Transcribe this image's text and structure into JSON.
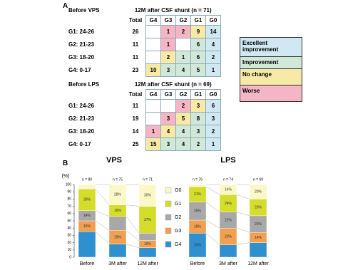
{
  "panel_a": {
    "label": "A",
    "columns": [
      "G4",
      "G3",
      "G2",
      "G1",
      "G0"
    ],
    "total_label": "Total",
    "tables": [
      {
        "before": "Before VPS",
        "after": "12M after CSF shunt (n = 71)",
        "rows": [
          {
            "group": "G1: 24-26",
            "total": 26,
            "cells": [
              null,
              1,
              2,
              9,
              14
            ]
          },
          {
            "group": "G2: 21-23",
            "total": 11,
            "cells": [
              null,
              1,
              null,
              6,
              4
            ]
          },
          {
            "group": "G3: 18-20",
            "total": 11,
            "cells": [
              null,
              2,
              1,
              6,
              2
            ]
          },
          {
            "group": "G4:  0-17",
            "total": 23,
            "cells": [
              10,
              3,
              4,
              5,
              1
            ]
          }
        ]
      },
      {
        "before": "Before LPS",
        "after": "12M after CSF shunt (n = 69)",
        "rows": [
          {
            "group": "G1: 24-26",
            "total": 11,
            "cells": [
              null,
              null,
              2,
              3,
              6
            ]
          },
          {
            "group": "G2: 21-23",
            "total": 19,
            "cells": [
              null,
              3,
              5,
              8,
              3
            ]
          },
          {
            "group": "G3: 18-20",
            "total": 14,
            "cells": [
              1,
              4,
              4,
              3,
              2
            ]
          },
          {
            "group": "G4:  0-17",
            "total": 25,
            "cells": [
              15,
              3,
              4,
              2,
              1
            ]
          }
        ]
      }
    ],
    "legend": [
      "Excellent improvement",
      "Improvement",
      "No change",
      "Worse"
    ]
  },
  "panel_b_label": "B",
  "chart_data": [
    {
      "type": "bar",
      "stacked": true,
      "title": "VPS",
      "y_label": "(%)",
      "categories": [
        "Before",
        "3M after",
        "12M after"
      ],
      "bar_labels": [
        "n = 80",
        "n = 75",
        "n = 71"
      ],
      "ylim": [
        0,
        100
      ],
      "yticks": [
        0,
        10,
        20,
        30,
        40,
        50,
        60,
        70,
        80,
        90,
        100
      ],
      "series": [
        {
          "name": "G4",
          "color": "#2f8fcf",
          "values": [
            35,
            18,
            13
          ],
          "value_labels": [
            null,
            null,
            null
          ]
        },
        {
          "name": "G3",
          "color": "#f0a050",
          "values": [
            15,
            19,
            10
          ],
          "value_labels": [
            "15%",
            "19%",
            "10%"
          ]
        },
        {
          "name": "G2",
          "color": "#a8a8a8",
          "values": [
            14,
            19,
            10
          ],
          "value_labels": [
            "14%",
            null,
            null
          ]
        },
        {
          "name": "G1",
          "color": "#d4dc2c",
          "values": [
            30,
            16,
            37
          ],
          "value_labels": [
            "30%",
            "16%",
            "37%"
          ]
        },
        {
          "name": "G0",
          "color": "#fbf8c8",
          "values": [
            6,
            28,
            30
          ],
          "value_labels": [
            null,
            "28%",
            "30%"
          ]
        }
      ]
    },
    {
      "type": "bar",
      "stacked": true,
      "title": "LPS",
      "categories": [
        "Before",
        "3M after",
        "12M after"
      ],
      "bar_labels": [
        "n = 76",
        "n = 74",
        "n = 69"
      ],
      "ylim": [
        0,
        100
      ],
      "series": [
        {
          "name": "G4",
          "color": "#2f8fcf",
          "values": [
            33,
            17,
            20
          ],
          "value_labels": [
            "33%",
            null,
            null
          ]
        },
        {
          "name": "G3",
          "color": "#f0a050",
          "values": [
            18,
            23,
            14
          ],
          "value_labels": [
            "18%",
            "23%",
            "14%"
          ]
        },
        {
          "name": "G2",
          "color": "#a8a8a8",
          "values": [
            25,
            22,
            23
          ],
          "value_labels": [
            "25%",
            "22%",
            "23%"
          ]
        },
        {
          "name": "G1",
          "color": "#d4dc2c",
          "values": [
            21,
            24,
            23
          ],
          "value_labels": [
            "21%",
            "24%",
            "23%"
          ]
        },
        {
          "name": "G0",
          "color": "#fbf8c8",
          "values": [
            3,
            14,
            20
          ],
          "value_labels": [
            null,
            "14%",
            "20%"
          ]
        }
      ]
    }
  ]
}
